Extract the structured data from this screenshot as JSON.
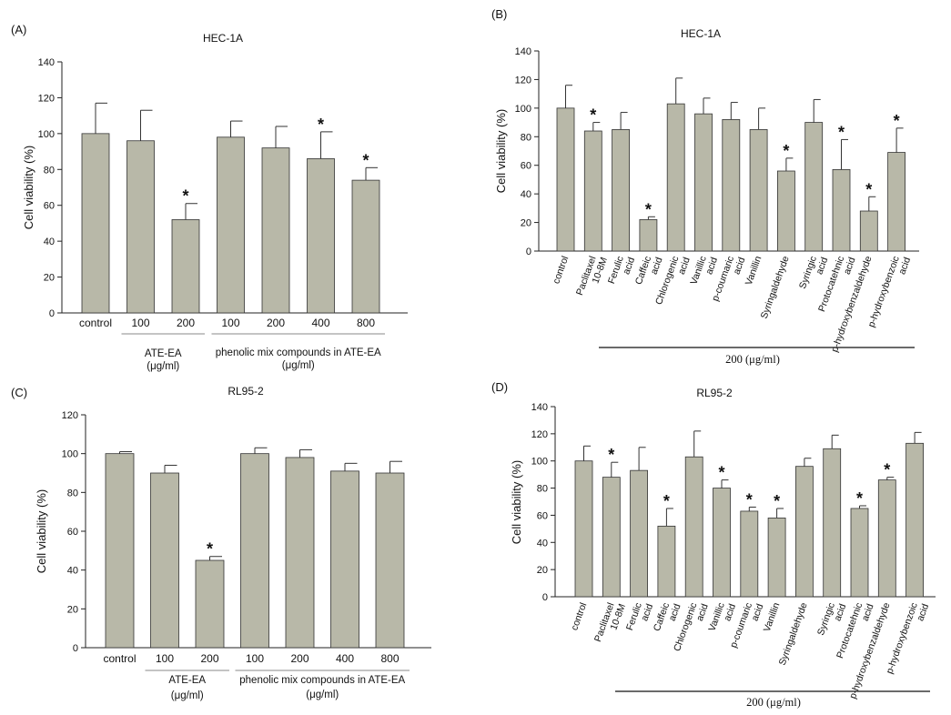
{
  "colors": {
    "bar": "#b8b8a8",
    "edge": "#333333",
    "axis": "#222222"
  },
  "chart_data": [
    {
      "panel": "(A)",
      "type": "bar",
      "title": "HEC-1A",
      "ylabel": "Cell viability (%)",
      "ylim": [
        0,
        140
      ],
      "yticks": [
        0,
        20,
        40,
        60,
        80,
        100,
        120,
        140
      ],
      "categories": [
        "control",
        "100",
        "200",
        "100",
        "200",
        "400",
        "800"
      ],
      "values": [
        100,
        96,
        52,
        98,
        92,
        86,
        74
      ],
      "errors": [
        17,
        17,
        9,
        9,
        12,
        15,
        7
      ],
      "significant": [
        false,
        false,
        true,
        false,
        false,
        true,
        true
      ],
      "marker": "*",
      "groups": [
        {
          "label": "ATE-EA",
          "unit": "(μg/ml)"
        },
        {
          "label": "phenolic mix compounds in ATE-EA",
          "unit": "(μg/ml)"
        }
      ]
    },
    {
      "panel": "(B)",
      "type": "bar",
      "title": "HEC-1A",
      "ylabel": "Cell viability (%)",
      "ylim": [
        0,
        140
      ],
      "yticks": [
        0,
        20,
        40,
        60,
        80,
        100,
        120,
        140
      ],
      "categories": [
        "control",
        "Paclitaxel 10-8M",
        "Ferulic acid",
        "Caffeic acid",
        "Chlorogenic acid",
        "Vanillic acid",
        "p-coumaric acid",
        "Vanillin",
        "Syringaldehyde",
        "Syringic acid",
        "Protocatehnic acid",
        "p-hydroxybenzaldehyde",
        "p-hydroxybenzoic acid"
      ],
      "values": [
        100,
        84,
        85,
        22,
        103,
        96,
        92,
        85,
        56,
        90,
        57,
        28,
        69
      ],
      "errors": [
        16,
        6,
        12,
        2,
        18,
        11,
        12,
        15,
        9,
        16,
        21,
        10,
        17
      ],
      "significant": [
        false,
        true,
        false,
        true,
        false,
        false,
        false,
        false,
        true,
        false,
        true,
        true,
        true
      ],
      "marker": "*",
      "xnote": "200 (μg/ml)"
    },
    {
      "panel": "(C)",
      "type": "bar",
      "title": "RL95-2",
      "ylabel": "Cell viability (%)",
      "ylim": [
        0,
        120
      ],
      "yticks": [
        0,
        20,
        40,
        60,
        80,
        100,
        120
      ],
      "categories": [
        "control",
        "100",
        "200",
        "100",
        "200",
        "400",
        "800"
      ],
      "values": [
        100,
        90,
        45,
        100,
        98,
        91,
        90
      ],
      "errors": [
        1,
        4,
        2,
        3,
        4,
        4,
        6
      ],
      "significant": [
        false,
        false,
        true,
        false,
        false,
        false,
        false
      ],
      "marker": "*",
      "groups": [
        {
          "label": "ATE-EA",
          "unit": "(μg/ml)"
        },
        {
          "label": "phenolic mix compounds in ATE-EA",
          "unit": "(μg/ml)"
        }
      ]
    },
    {
      "panel": "(D)",
      "type": "bar",
      "title": "RL95-2",
      "ylabel": "Cell viability (%)",
      "ylim": [
        0,
        140
      ],
      "yticks": [
        0,
        20,
        40,
        60,
        80,
        100,
        120,
        140
      ],
      "categories": [
        "control",
        "Paclitaxel 10-8M",
        "Ferulic acid",
        "Caffeic acid",
        "Chlorogenic acid",
        "Vanillic acid",
        "p-coumaric acid",
        "Vanillin",
        "Syringaldehyde",
        "Syringic acid",
        "Protocatehnic acid",
        "p-hydroxybenzaldehyde",
        "p-hydroxybenzoic acid"
      ],
      "values": [
        100,
        88,
        93,
        52,
        103,
        80,
        63,
        58,
        96,
        109,
        65,
        86,
        113
      ],
      "errors": [
        11,
        11,
        17,
        13,
        19,
        6,
        3,
        7,
        6,
        10,
        2,
        2,
        8
      ],
      "significant": [
        false,
        true,
        false,
        true,
        false,
        true,
        true,
        true,
        false,
        false,
        true,
        true,
        false
      ],
      "marker": "*",
      "xnote": "200 (μg/ml)"
    }
  ]
}
